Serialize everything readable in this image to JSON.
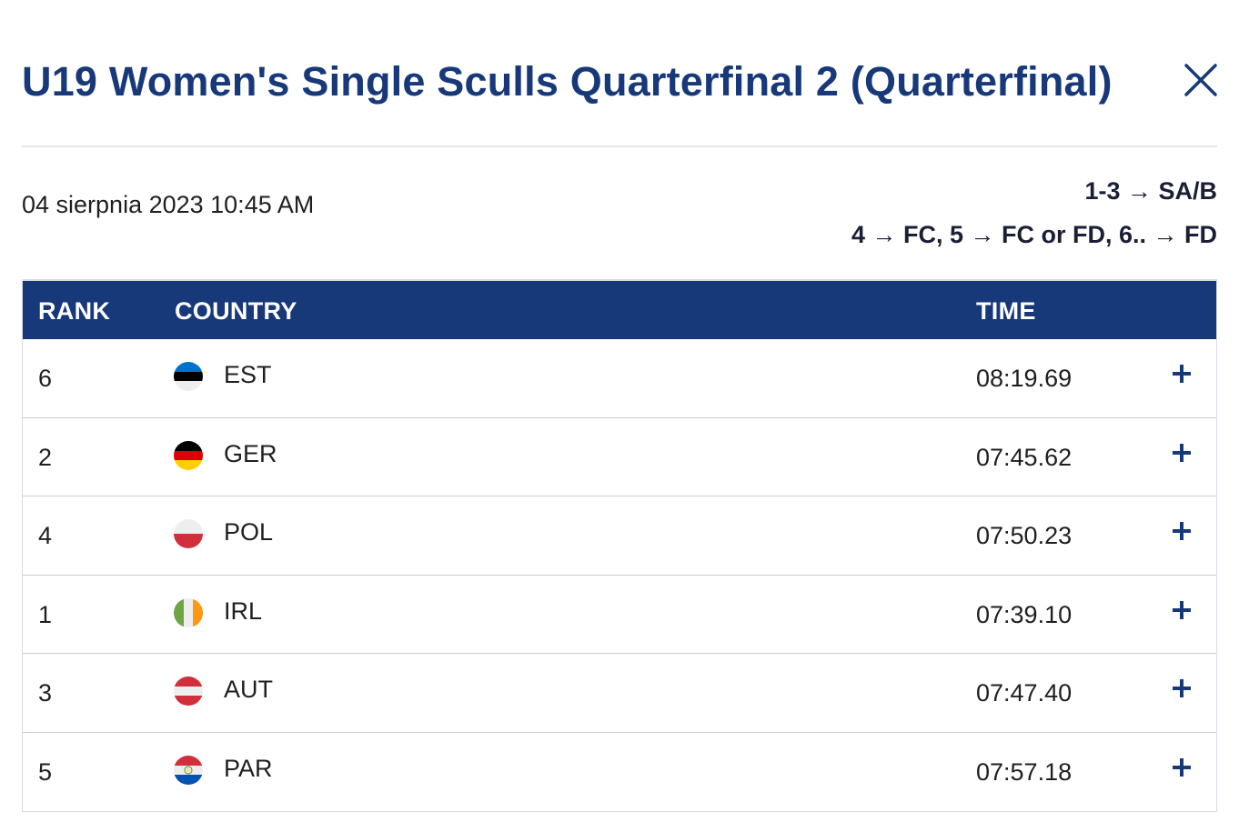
{
  "modal": {
    "title": "U19 Women's Single Sculls Quarterfinal 2 (Quarterfinal)",
    "date": "04 sierpnia 2023 10:45 AM",
    "progression": [
      "1-3 → SA/B",
      "4 → FC, 5 → FC or FD, 6.. → FD"
    ],
    "close_icon": "close-icon"
  },
  "table": {
    "headers": {
      "rank": "RANK",
      "country": "COUNTRY",
      "time": "TIME"
    },
    "header_color": "#173879",
    "rows": [
      {
        "rank": "6",
        "country": "EST",
        "time": "08:19.69",
        "flag": "estonia-flag-icon"
      },
      {
        "rank": "2",
        "country": "GER",
        "time": "07:45.62",
        "flag": "germany-flag-icon"
      },
      {
        "rank": "4",
        "country": "POL",
        "time": "07:50.23",
        "flag": "poland-flag-icon"
      },
      {
        "rank": "1",
        "country": "IRL",
        "time": "07:39.10",
        "flag": "ireland-flag-icon"
      },
      {
        "rank": "3",
        "country": "AUT",
        "time": "07:47.40",
        "flag": "austria-flag-icon"
      },
      {
        "rank": "5",
        "country": "PAR",
        "time": "07:57.18",
        "flag": "paraguay-flag-icon"
      }
    ],
    "expand_icon": "plus-icon"
  },
  "colors": {
    "title": "#173879",
    "accent": "#173879"
  }
}
